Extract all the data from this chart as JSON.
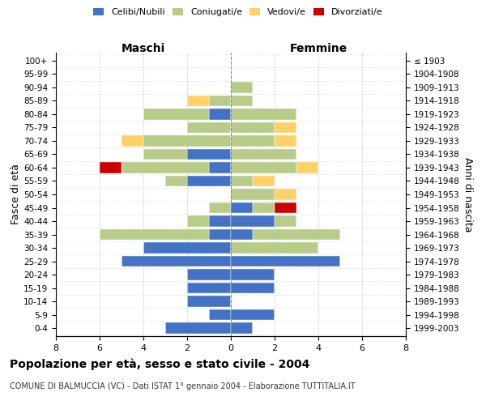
{
  "age_groups": [
    "0-4",
    "5-9",
    "10-14",
    "15-19",
    "20-24",
    "25-29",
    "30-34",
    "35-39",
    "40-44",
    "45-49",
    "50-54",
    "55-59",
    "60-64",
    "65-69",
    "70-74",
    "75-79",
    "80-84",
    "85-89",
    "90-94",
    "95-99",
    "100+"
  ],
  "birth_years": [
    "1999-2003",
    "1994-1998",
    "1989-1993",
    "1984-1988",
    "1979-1983",
    "1974-1978",
    "1969-1973",
    "1964-1968",
    "1959-1963",
    "1954-1958",
    "1949-1953",
    "1944-1948",
    "1939-1943",
    "1934-1938",
    "1929-1933",
    "1924-1928",
    "1919-1923",
    "1914-1918",
    "1909-1913",
    "1904-1908",
    "≤ 1903"
  ],
  "male": {
    "celibi": [
      3,
      1,
      2,
      2,
      2,
      5,
      4,
      1,
      1,
      0,
      0,
      2,
      1,
      2,
      0,
      0,
      1,
      0,
      0,
      0,
      0
    ],
    "coniugati": [
      0,
      0,
      0,
      0,
      0,
      0,
      0,
      5,
      1,
      1,
      0,
      1,
      4,
      2,
      4,
      2,
      3,
      1,
      0,
      0,
      0
    ],
    "vedovi": [
      0,
      0,
      0,
      0,
      0,
      0,
      0,
      0,
      0,
      0,
      0,
      0,
      0,
      0,
      1,
      0,
      0,
      1,
      0,
      0,
      0
    ],
    "divorziati": [
      0,
      0,
      0,
      0,
      0,
      0,
      0,
      0,
      0,
      0,
      0,
      0,
      1,
      0,
      0,
      0,
      0,
      0,
      0,
      0,
      0
    ]
  },
  "female": {
    "nubili": [
      1,
      2,
      0,
      2,
      2,
      5,
      0,
      1,
      2,
      1,
      0,
      0,
      0,
      0,
      0,
      0,
      0,
      0,
      0,
      0,
      0
    ],
    "coniugate": [
      0,
      0,
      0,
      0,
      0,
      0,
      4,
      4,
      1,
      1,
      2,
      1,
      3,
      3,
      2,
      2,
      3,
      1,
      1,
      0,
      0
    ],
    "vedove": [
      0,
      0,
      0,
      0,
      0,
      0,
      0,
      0,
      0,
      0,
      1,
      1,
      1,
      0,
      1,
      1,
      0,
      0,
      0,
      0,
      0
    ],
    "divorziate": [
      0,
      0,
      0,
      0,
      0,
      0,
      0,
      0,
      0,
      1,
      0,
      0,
      0,
      0,
      0,
      0,
      0,
      0,
      0,
      0,
      0
    ]
  },
  "colors": {
    "celibi_nubili": "#4472C4",
    "coniugati": "#B8CC8A",
    "vedovi": "#FFD166",
    "divorziati": "#CC0000"
  },
  "xlim": [
    -8,
    8
  ],
  "xticks": [
    -8,
    -6,
    -4,
    -2,
    0,
    2,
    4,
    6,
    8
  ],
  "xticklabels": [
    "8",
    "6",
    "4",
    "2",
    "0",
    "2",
    "4",
    "6",
    "8"
  ],
  "title": "Popolazione per età, sesso e stato civile - 2004",
  "subtitle": "COMUNE DI BALMUCCIA (VC) - Dati ISTAT 1° gennaio 2004 - Elaborazione TUTTITALIA.IT",
  "ylabel_left": "Fasce di età",
  "ylabel_right": "Anni di nascita",
  "header_left": "Maschi",
  "header_right": "Femmine",
  "bg_color": "#FFFFFF",
  "grid_color": "#CCCCCC",
  "bar_height": 0.8
}
